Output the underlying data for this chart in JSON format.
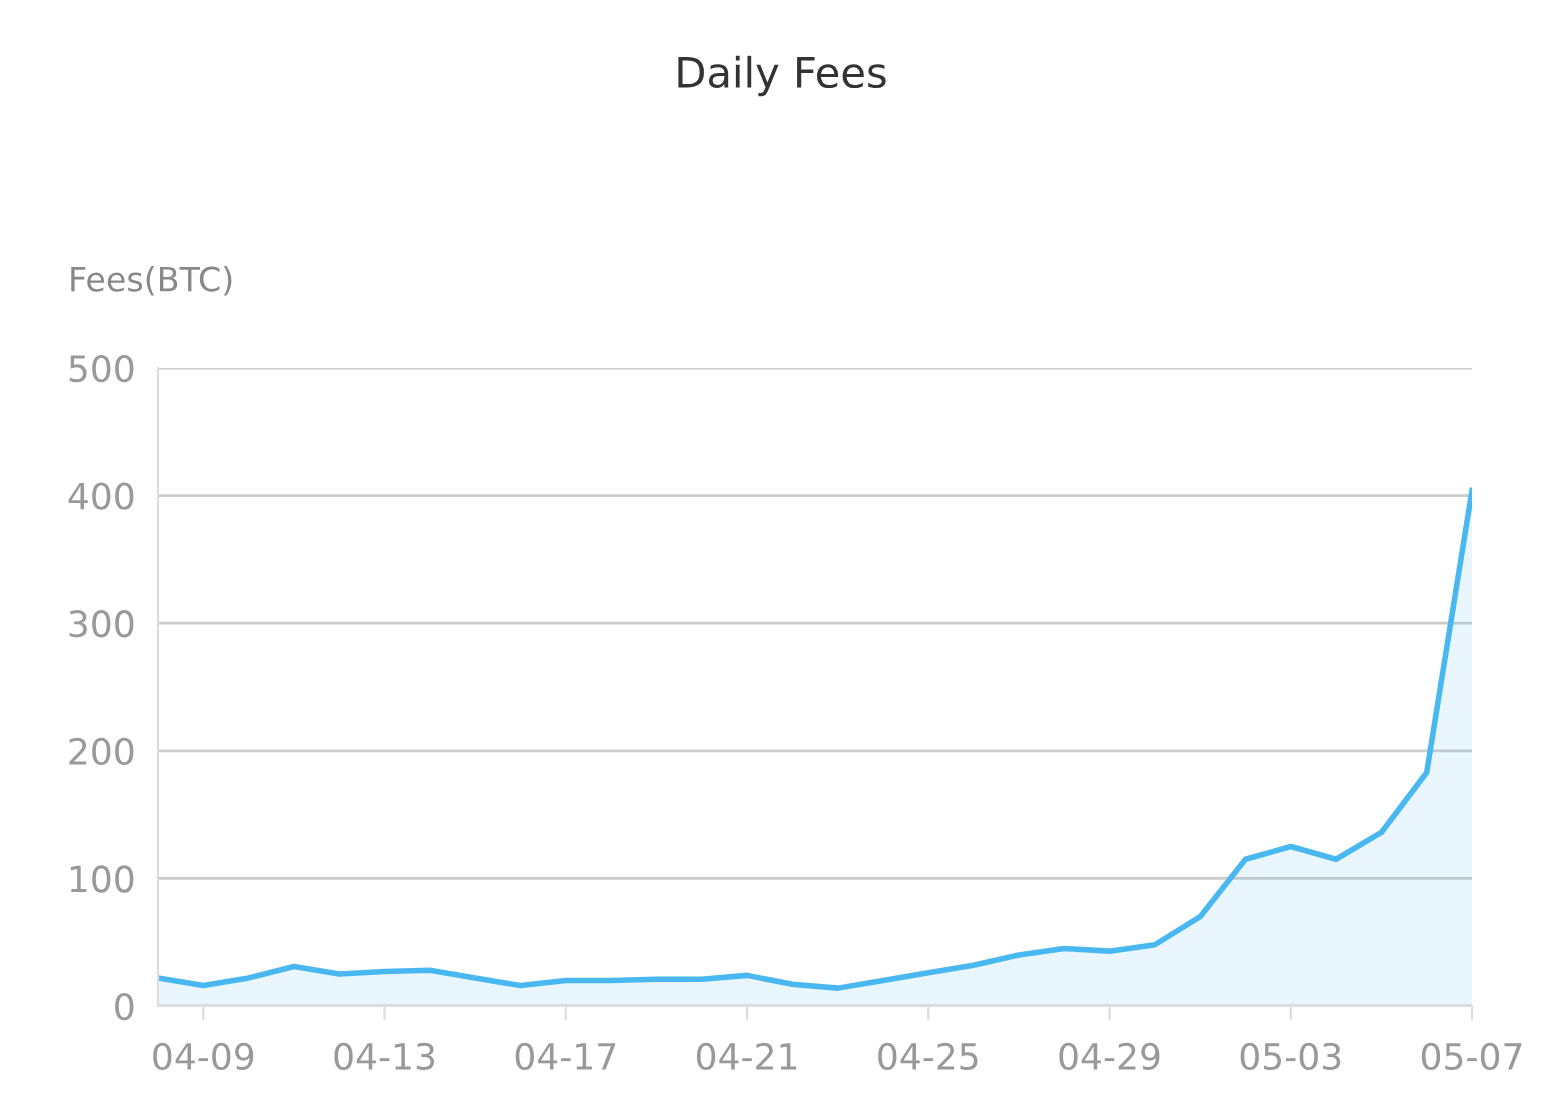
{
  "chart_data": {
    "type": "area",
    "title": "Daily Fees",
    "ylabel": "Fees(BTC)",
    "categories": [
      null,
      "04-09",
      null,
      null,
      null,
      "04-13",
      null,
      null,
      null,
      "04-17",
      null,
      null,
      null,
      "04-21",
      null,
      null,
      null,
      "04-25",
      null,
      null,
      null,
      "04-29",
      null,
      null,
      null,
      "05-03",
      null,
      null,
      null,
      "05-07"
    ],
    "series": [
      {
        "color": "#4ab8f0",
        "values": [
          22,
          16,
          22,
          31,
          25,
          27,
          28,
          22,
          16,
          20,
          20,
          21,
          21,
          24,
          17,
          14,
          20,
          26,
          32,
          40,
          45,
          43,
          48,
          70,
          115,
          125,
          115,
          136,
          183,
          404
        ]
      }
    ],
    "ylim": [
      0,
      500
    ],
    "yticks": [
      0,
      100,
      200,
      300,
      400,
      500
    ],
    "grid": "y",
    "legend": false
  }
}
